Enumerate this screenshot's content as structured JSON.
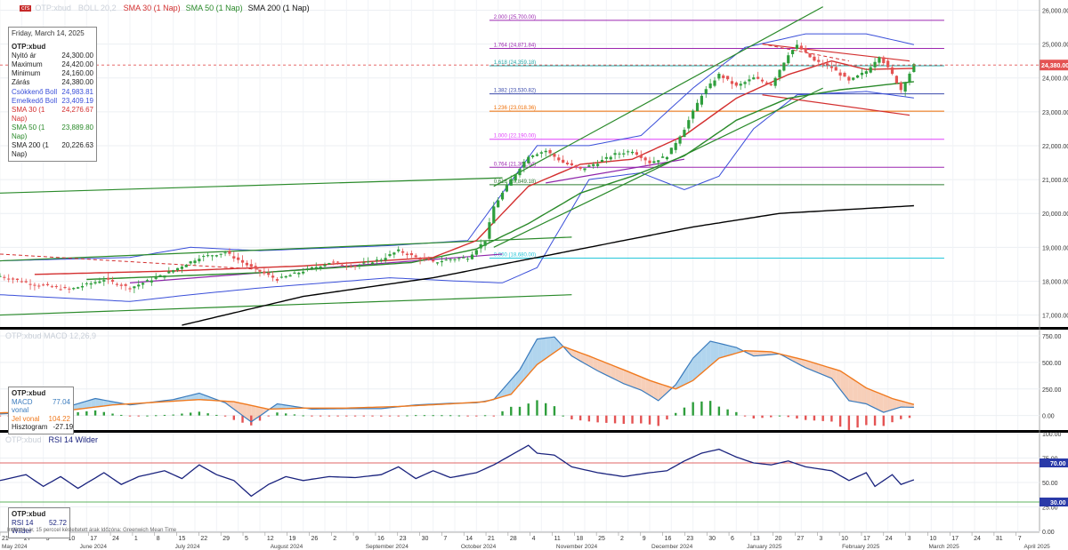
{
  "legend": {
    "badge": "crs",
    "faded_symbol": "OTP:xbud",
    "faded_boll": "BOLL 20,2",
    "sma30": "SMA 30 (1 Nap)",
    "sma50": "SMA 50 (1 Nap)",
    "sma200": "SMA 200 (1 Nap)"
  },
  "info_box": {
    "date": "Friday, March 14, 2025",
    "symbol": "OTP:xbud",
    "rows": [
      {
        "label": "Nyitó ár",
        "value": "24,300.00"
      },
      {
        "label": "Maximum",
        "value": "24,420.00"
      },
      {
        "label": "Minimum",
        "value": "24,160.00"
      },
      {
        "label": "Zárás",
        "value": "24,380.00"
      },
      {
        "label": "Csökkenő Boll",
        "value": "24,983.81"
      },
      {
        "label": "Emelkedő Boll",
        "value": "23,409.19"
      },
      {
        "label": "SMA 30 (1 Nap)",
        "value": "24,276.67"
      },
      {
        "label": "SMA 50 (1 Nap)",
        "value": "23,889.80"
      },
      {
        "label": "SMA 200 (1 Nap)",
        "value": "20,226.63"
      }
    ]
  },
  "macd_box": {
    "faded_title": "OTP:xbud MACD 12,26,9",
    "symbol": "OTP:xbud",
    "rows": [
      {
        "label": "MACD vonal",
        "value": "77.04"
      },
      {
        "label": "Jel vonal",
        "value": "104.22"
      },
      {
        "label": "Hisztogram",
        "value": "-27.19"
      }
    ]
  },
  "rsi_box": {
    "faded_title": "OTP:xbud",
    "title": "RSI 14 Wilder",
    "symbol": "OTP:xbud",
    "rows": [
      {
        "label": "RSI 14 Wilder",
        "value": "52.72"
      }
    ]
  },
  "footnote": "Indikatív ár, 15 perccel késleltetett árak   Időzóna: Greenwich Mean Time",
  "colors": {
    "up": "#2e9e3c",
    "down": "#e45353",
    "sma30": "#d32f2f",
    "sma50": "#2a8a2a",
    "sma200": "#000000",
    "boll": "#3a4fd9",
    "macd": "#3a7bbd",
    "signal": "#f07a1f",
    "rsi": "#1a237e",
    "level_red": "#e06666",
    "level_green": "#5fb35f"
  },
  "chart_data": [
    {
      "type": "candlestick",
      "title": "OTP:xbud",
      "y_range": [
        16700,
        26300
      ],
      "y_ticks": [
        17000,
        18000,
        19000,
        20000,
        21000,
        22000,
        23000,
        24000,
        25000,
        26000
      ],
      "y_tick_labels": [
        "17,000.00",
        "18,000.00",
        "19,000.00",
        "20,000.00",
        "21,000.00",
        "22,000.00",
        "23,000.00",
        "24,000.00",
        "25,000.00",
        "26,000.00"
      ],
      "last_price": 24380,
      "last_price_label": "24,380.00",
      "fib_levels": [
        {
          "label": "2.000 (25,700.00)",
          "value": 25700,
          "color": "#9c27b0"
        },
        {
          "label": "1.764 (24,871.84)",
          "value": 24872,
          "color": "#9c27b0"
        },
        {
          "label": "1.618 (24,359.18)",
          "value": 24359,
          "color": "#26a6a6"
        },
        {
          "label": "1.382 (23,530.82)",
          "value": 23531,
          "color": "#3949ab"
        },
        {
          "label": "1.236 (23,018.36)",
          "value": 23018,
          "color": "#ef6c00"
        },
        {
          "label": "1.000 (22,190.00)",
          "value": 22190,
          "color": "#e040fb"
        },
        {
          "label": "0.764 (21,361.64)",
          "value": 21362,
          "color": "#9c27b0"
        },
        {
          "label": "0.618 (20,849.18)",
          "value": 20849,
          "color": "#2e7d32"
        },
        {
          "label": "0.000 (18,680.00)",
          "value": 18680,
          "color": "#26c6da"
        }
      ],
      "close_points": [
        [
          0,
          18150
        ],
        [
          8,
          17900
        ],
        [
          16,
          17750
        ],
        [
          24,
          18050
        ],
        [
          30,
          17800
        ],
        [
          38,
          18200
        ],
        [
          46,
          18700
        ],
        [
          52,
          18850
        ],
        [
          58,
          18400
        ],
        [
          64,
          18050
        ],
        [
          70,
          18300
        ],
        [
          76,
          18550
        ],
        [
          82,
          18450
        ],
        [
          88,
          18650
        ],
        [
          92,
          18900
        ],
        [
          96,
          18700
        ],
        [
          100,
          18550
        ],
        [
          104,
          18650
        ],
        [
          108,
          18700
        ],
        [
          112,
          19200
        ],
        [
          114,
          20200
        ],
        [
          118,
          21000
        ],
        [
          122,
          21700
        ],
        [
          126,
          21850
        ],
        [
          130,
          21500
        ],
        [
          134,
          21300
        ],
        [
          138,
          21500
        ],
        [
          142,
          21750
        ],
        [
          146,
          21850
        ],
        [
          150,
          21500
        ],
        [
          154,
          21700
        ],
        [
          158,
          22500
        ],
        [
          162,
          23500
        ],
        [
          166,
          24100
        ],
        [
          170,
          23750
        ],
        [
          174,
          24000
        ],
        [
          178,
          23800
        ],
        [
          182,
          24700
        ],
        [
          184,
          24950
        ],
        [
          188,
          24500
        ],
        [
          192,
          24300
        ],
        [
          196,
          23900
        ],
        [
          200,
          24200
        ],
        [
          203,
          24650
        ],
        [
          206,
          24100
        ],
        [
          208,
          23650
        ],
        [
          211,
          24380
        ]
      ],
      "sma30": [
        [
          8,
          18200
        ],
        [
          40,
          18300
        ],
        [
          70,
          18450
        ],
        [
          100,
          18700
        ],
        [
          110,
          19200
        ],
        [
          122,
          20800
        ],
        [
          134,
          21450
        ],
        [
          146,
          21600
        ],
        [
          158,
          22300
        ],
        [
          170,
          23400
        ],
        [
          182,
          24100
        ],
        [
          192,
          24500
        ],
        [
          200,
          24250
        ],
        [
          211,
          24280
        ]
      ],
      "sma50": [
        [
          20,
          18050
        ],
        [
          60,
          18250
        ],
        [
          95,
          18550
        ],
        [
          110,
          18950
        ],
        [
          122,
          19700
        ],
        [
          134,
          20600
        ],
        [
          146,
          21100
        ],
        [
          158,
          21700
        ],
        [
          170,
          22750
        ],
        [
          182,
          23400
        ],
        [
          194,
          23650
        ],
        [
          211,
          23890
        ]
      ],
      "sma200": [
        [
          42,
          16700
        ],
        [
          70,
          17550
        ],
        [
          100,
          18100
        ],
        [
          120,
          18600
        ],
        [
          140,
          19100
        ],
        [
          160,
          19600
        ],
        [
          180,
          20000
        ],
        [
          211,
          20227
        ]
      ],
      "boll_upper": [
        [
          0,
          18600
        ],
        [
          30,
          18700
        ],
        [
          44,
          19000
        ],
        [
          60,
          18900
        ],
        [
          90,
          19050
        ],
        [
          108,
          19200
        ],
        [
          116,
          20600
        ],
        [
          124,
          22000
        ],
        [
          136,
          22000
        ],
        [
          148,
          22300
        ],
        [
          160,
          23700
        ],
        [
          172,
          24900
        ],
        [
          186,
          25300
        ],
        [
          200,
          25300
        ],
        [
          211,
          24984
        ]
      ],
      "boll_lower": [
        [
          0,
          17600
        ],
        [
          30,
          17400
        ],
        [
          44,
          17600
        ],
        [
          60,
          17800
        ],
        [
          90,
          18100
        ],
        [
          106,
          18000
        ],
        [
          116,
          17950
        ],
        [
          124,
          18400
        ],
        [
          136,
          21000
        ],
        [
          148,
          21200
        ],
        [
          158,
          20700
        ],
        [
          166,
          21100
        ],
        [
          174,
          22500
        ],
        [
          184,
          23500
        ],
        [
          200,
          23600
        ],
        [
          211,
          23409
        ]
      ],
      "trend_lines": [
        {
          "from": [
            0,
            20600
          ],
          "to": [
            116,
            21050
          ],
          "color": "#2a8a2a"
        },
        {
          "from": [
            0,
            18600
          ],
          "to": [
            132,
            19300
          ],
          "color": "#2a8a2a"
        },
        {
          "from": [
            0,
            17000
          ],
          "to": [
            132,
            17600
          ],
          "color": "#2a8a2a"
        },
        {
          "from": [
            114,
            20800
          ],
          "to": [
            190,
            26100
          ],
          "color": "#2a8a2a"
        },
        {
          "from": [
            114,
            19000
          ],
          "to": [
            190,
            23700
          ],
          "color": "#2a8a2a"
        },
        {
          "from": [
            176,
            25000
          ],
          "to": [
            210,
            24500
          ],
          "color": "#d32f2f"
        },
        {
          "from": [
            176,
            23500
          ],
          "to": [
            210,
            22900
          ],
          "color": "#d32f2f"
        },
        {
          "from": [
            30,
            17950
          ],
          "to": [
            116,
            18800
          ],
          "color": "#8e24aa"
        },
        {
          "from": [
            126,
            20900
          ],
          "to": [
            158,
            21600
          ],
          "color": "#8e24aa"
        }
      ],
      "x_date_labels": [
        "21",
        "27",
        "3",
        "10",
        "17",
        "24",
        "1",
        "8",
        "15",
        "22",
        "29",
        "5",
        "12",
        "19",
        "26",
        "2",
        "9",
        "16",
        "23",
        "30",
        "7",
        "14",
        "21",
        "28",
        "4",
        "11",
        "18",
        "25",
        "2",
        "9",
        "16",
        "23",
        "30",
        "6",
        "13",
        "20",
        "27",
        "3",
        "10",
        "17",
        "24",
        "3",
        "10",
        "17",
        "24",
        "31",
        "7"
      ],
      "x_month_labels": [
        {
          "label": "May 2024",
          "index": 0
        },
        {
          "label": "June 2024",
          "index": 18
        },
        {
          "label": "July 2024",
          "index": 40
        },
        {
          "label": "August 2024",
          "index": 62
        },
        {
          "label": "September 2024",
          "index": 84
        },
        {
          "label": "October 2024",
          "index": 106
        },
        {
          "label": "November 2024",
          "index": 128
        },
        {
          "label": "December 2024",
          "index": 150
        },
        {
          "label": "January 2025",
          "index": 172
        },
        {
          "label": "February 2025",
          "index": 194
        },
        {
          "label": "March 2025",
          "index": 214
        },
        {
          "label": "April 2025",
          "index": 236
        }
      ]
    },
    {
      "type": "line",
      "title": "MACD",
      "y_range": [
        -120,
        800
      ],
      "y_ticks": [
        0,
        250,
        500,
        750
      ],
      "y_tick_labels": [
        "0.00",
        "250.00",
        "500.00",
        "750.00"
      ],
      "macd": [
        [
          0,
          15
        ],
        [
          12,
          40
        ],
        [
          22,
          160
        ],
        [
          30,
          100
        ],
        [
          40,
          150
        ],
        [
          46,
          210
        ],
        [
          52,
          120
        ],
        [
          58,
          -60
        ],
        [
          64,
          110
        ],
        [
          72,
          60
        ],
        [
          80,
          65
        ],
        [
          88,
          65
        ],
        [
          96,
          100
        ],
        [
          104,
          115
        ],
        [
          110,
          120
        ],
        [
          114,
          150
        ],
        [
          120,
          430
        ],
        [
          124,
          720
        ],
        [
          128,
          740
        ],
        [
          132,
          560
        ],
        [
          138,
          420
        ],
        [
          144,
          300
        ],
        [
          148,
          240
        ],
        [
          152,
          140
        ],
        [
          156,
          290
        ],
        [
          160,
          540
        ],
        [
          164,
          700
        ],
        [
          170,
          640
        ],
        [
          174,
          560
        ],
        [
          180,
          580
        ],
        [
          186,
          450
        ],
        [
          192,
          350
        ],
        [
          196,
          140
        ],
        [
          200,
          110
        ],
        [
          204,
          30
        ],
        [
          208,
          80
        ],
        [
          211,
          77
        ]
      ],
      "signal": [
        [
          0,
          25
        ],
        [
          14,
          40
        ],
        [
          26,
          100
        ],
        [
          34,
          120
        ],
        [
          46,
          150
        ],
        [
          54,
          130
        ],
        [
          62,
          60
        ],
        [
          70,
          70
        ],
        [
          80,
          70
        ],
        [
          92,
          85
        ],
        [
          104,
          110
        ],
        [
          112,
          130
        ],
        [
          118,
          200
        ],
        [
          124,
          480
        ],
        [
          130,
          650
        ],
        [
          136,
          560
        ],
        [
          144,
          430
        ],
        [
          150,
          330
        ],
        [
          156,
          250
        ],
        [
          160,
          330
        ],
        [
          166,
          540
        ],
        [
          172,
          610
        ],
        [
          178,
          600
        ],
        [
          186,
          520
        ],
        [
          194,
          420
        ],
        [
          200,
          260
        ],
        [
          206,
          160
        ],
        [
          211,
          104
        ]
      ],
      "histogram_sample": [
        -27,
        12,
        18,
        22,
        20,
        15,
        10,
        8,
        -15,
        -22,
        -28,
        -24,
        -18,
        -20,
        14,
        24,
        30,
        140,
        190,
        210,
        150,
        90,
        -60,
        -120,
        -130,
        -110,
        -90,
        -80,
        40,
        120,
        170,
        160,
        90,
        60,
        40,
        -30,
        -80,
        -110,
        -120,
        -90,
        -30,
        40,
        -20,
        -27
      ]
    },
    {
      "type": "line",
      "title": "RSI 14 Wilder",
      "y_range": [
        0,
        100
      ],
      "y_ticks": [
        0,
        25,
        50,
        75,
        100
      ],
      "y_tick_labels": [
        "0.00",
        "25.00",
        "50.00",
        "75.00",
        "100.00"
      ],
      "levels": [
        {
          "label": "70.00",
          "value": 70
        },
        {
          "label": "30.00",
          "value": 30
        }
      ],
      "rsi": [
        [
          0,
          52
        ],
        [
          6,
          58
        ],
        [
          10,
          46
        ],
        [
          14,
          56
        ],
        [
          18,
          44
        ],
        [
          24,
          60
        ],
        [
          28,
          48
        ],
        [
          32,
          56
        ],
        [
          38,
          62
        ],
        [
          42,
          54
        ],
        [
          46,
          68
        ],
        [
          50,
          58
        ],
        [
          54,
          52
        ],
        [
          58,
          36
        ],
        [
          62,
          48
        ],
        [
          66,
          56
        ],
        [
          70,
          52
        ],
        [
          76,
          56
        ],
        [
          82,
          55
        ],
        [
          88,
          58
        ],
        [
          92,
          66
        ],
        [
          96,
          54
        ],
        [
          100,
          62
        ],
        [
          104,
          55
        ],
        [
          110,
          60
        ],
        [
          114,
          68
        ],
        [
          118,
          78
        ],
        [
          122,
          88
        ],
        [
          124,
          80
        ],
        [
          128,
          78
        ],
        [
          132,
          66
        ],
        [
          138,
          60
        ],
        [
          144,
          56
        ],
        [
          150,
          60
        ],
        [
          154,
          62
        ],
        [
          158,
          72
        ],
        [
          162,
          80
        ],
        [
          166,
          84
        ],
        [
          170,
          76
        ],
        [
          174,
          70
        ],
        [
          178,
          68
        ],
        [
          182,
          72
        ],
        [
          186,
          66
        ],
        [
          192,
          62
        ],
        [
          196,
          52
        ],
        [
          200,
          60
        ],
        [
          202,
          46
        ],
        [
          206,
          58
        ],
        [
          208,
          48
        ],
        [
          211,
          52.72
        ]
      ]
    }
  ]
}
